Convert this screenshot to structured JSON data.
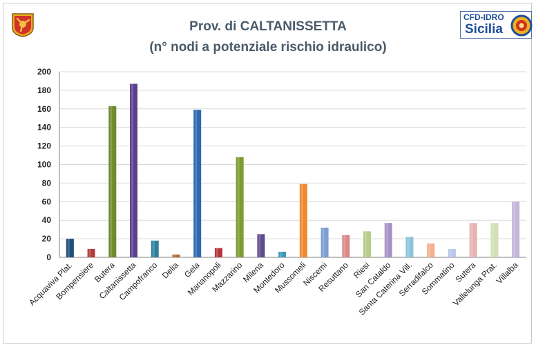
{
  "logos": {
    "left": "sicily-region-emblem-icon",
    "right_line1": "CFD-IDRO",
    "right_line2": "Sicilia"
  },
  "chart_data": {
    "type": "bar",
    "title": "Prov. di CALTANISSETTA",
    "subtitle": "(n° nodi a potenziale rischio idraulico)",
    "xlabel": "",
    "ylabel": "",
    "ylim": [
      0,
      200
    ],
    "yticks": [
      0,
      20,
      40,
      60,
      80,
      100,
      120,
      140,
      160,
      180,
      200
    ],
    "grid": true,
    "legend": "none",
    "categories": [
      "Acquaviva Plat.",
      "Bompensiere",
      "Butera",
      "Caltanissetta",
      "Campofranco",
      "Delia",
      "Gela",
      "Marianopoli",
      "Mazzarino",
      "Milena",
      "Montedoro",
      "Mussomeli",
      "Niscemi",
      "Resuttano",
      "Riesi",
      "San Cataldo",
      "Santa Caterina Vill.",
      "Serradifalco",
      "Sommatino",
      "Sutera",
      "Vallelunga Prat.",
      "Villalba"
    ],
    "values": [
      20,
      9,
      163,
      187,
      18,
      3,
      159,
      10,
      108,
      25,
      6,
      79,
      32,
      24,
      28,
      37,
      22,
      15,
      9,
      37,
      37,
      60
    ],
    "colors": [
      "#1f4e79",
      "#b23b3b",
      "#6f8a2e",
      "#5b3f8c",
      "#2f7f9a",
      "#b56a2a",
      "#2f67b0",
      "#b8343a",
      "#7b9c33",
      "#5f4a8e",
      "#3b9bb8",
      "#ef8a2e",
      "#7b9fd0",
      "#d88a8a",
      "#b6cc88",
      "#a692c8",
      "#8cc4dc",
      "#f4b088",
      "#b8c8e6",
      "#e8b2b2",
      "#d2e0b6",
      "#c2b6d8"
    ]
  }
}
